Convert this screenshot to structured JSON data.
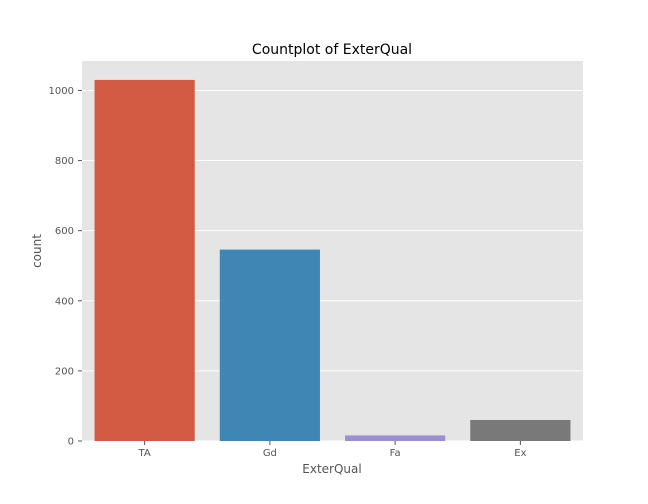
{
  "chart_data": {
    "type": "bar",
    "title": "Countplot of ExterQual",
    "xlabel": "ExterQual",
    "ylabel": "count",
    "categories": [
      "TA",
      "Gd",
      "Fa",
      "Ex"
    ],
    "values": [
      1030,
      546,
      16,
      60
    ],
    "colors": [
      "#D35B44",
      "#3F86B5",
      "#9D90CF",
      "#797979"
    ],
    "ylim": [
      0,
      1084
    ],
    "yticks": [
      0,
      200,
      400,
      600,
      800,
      1000
    ],
    "grid": true,
    "legend": "none",
    "style": "ggplot",
    "plot_background": "#E5E5E5",
    "grid_color": "#FFFFFF"
  }
}
